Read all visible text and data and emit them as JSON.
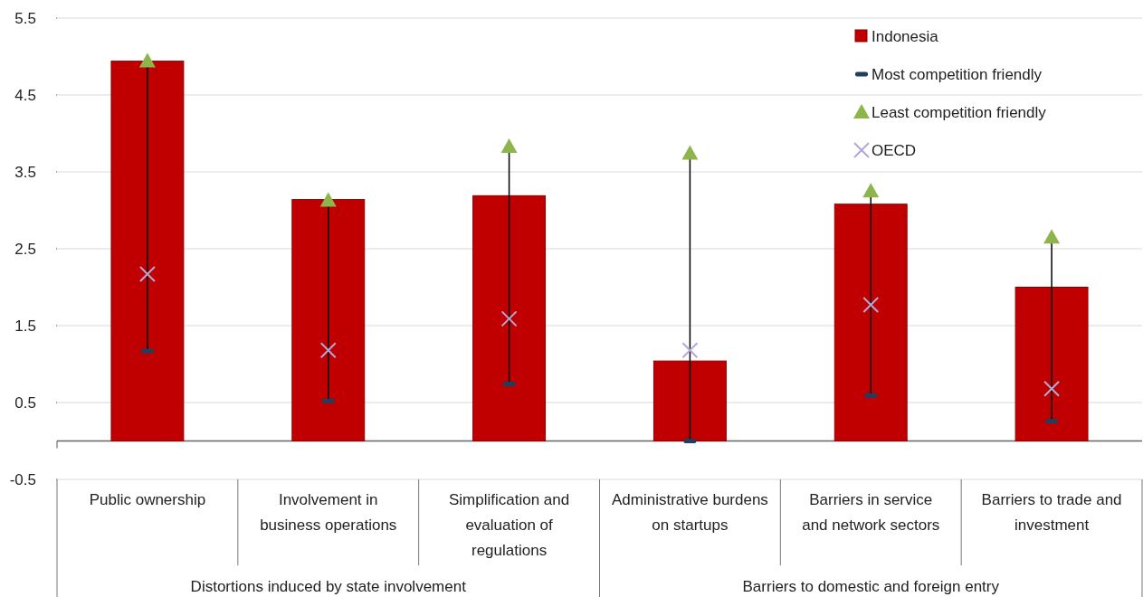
{
  "chart_data": {
    "type": "bar",
    "categories": [
      "Public ownership",
      "Involvement in business operations",
      "Simplification and evaluation of regulations",
      "Administrative burdens on startups",
      "Barriers in service and network sectors",
      "Barriers to trade and investment"
    ],
    "series": [
      {
        "name": "Indonesia",
        "color": "#c00000",
        "values": [
          4.94,
          3.14,
          3.19,
          1.04,
          3.08,
          2.0
        ]
      },
      {
        "name": "Most competition friendly",
        "type": "scatter",
        "marker": "square",
        "color": "#1f3f5f",
        "values": [
          1.17,
          0.52,
          0.74,
          0.0,
          0.59,
          0.26
        ]
      },
      {
        "name": "Least competition friendly",
        "type": "scatter",
        "marker": "triangle",
        "color": "#8db54b",
        "values": [
          4.94,
          3.13,
          3.83,
          3.74,
          3.25,
          2.65
        ]
      },
      {
        "name": "OECD",
        "type": "scatter",
        "marker": "cross",
        "color": "#b4a7d6",
        "values": [
          2.17,
          1.18,
          1.59,
          1.18,
          1.77,
          0.68
        ]
      }
    ],
    "ylim": [
      -0.5,
      5.5
    ],
    "yticks": [
      5.5,
      4.5,
      3.5,
      2.5,
      1.5,
      0.5,
      -0.5
    ],
    "grid": "y",
    "legend": "top right",
    "annotations": [
      "Distortions induced by state involvement",
      "Barriers to domestic and foreign entry"
    ]
  }
}
